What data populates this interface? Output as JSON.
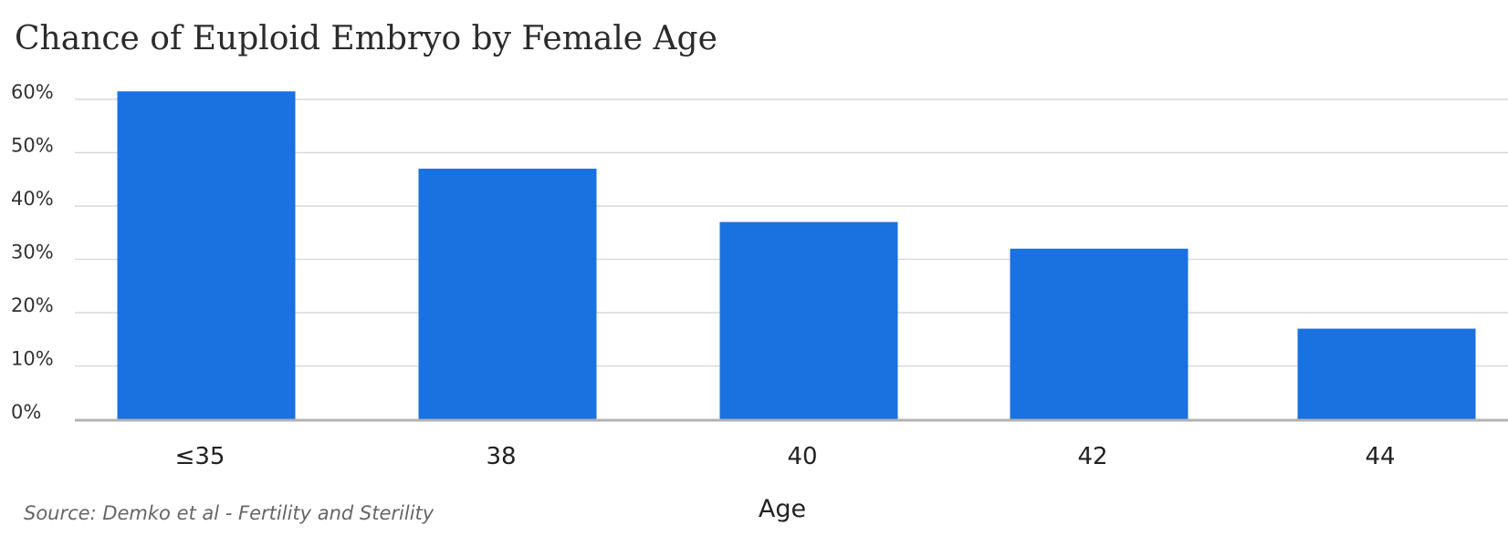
{
  "chart_data": {
    "type": "bar",
    "title": "Chance of Euploid Embryo by Female Age",
    "xlabel": "Age",
    "ylabel": "",
    "categories": [
      "≤35",
      "38",
      "40",
      "42",
      "44"
    ],
    "values": [
      61.5,
      47,
      37,
      32,
      17
    ],
    "ylim": [
      0,
      60
    ],
    "yticks": [
      0,
      10,
      20,
      30,
      40,
      50,
      60
    ],
    "ytick_labels": [
      "0%",
      "10%",
      "20%",
      "30%",
      "40%",
      "50%",
      "60%"
    ],
    "grid": true,
    "legend": "none",
    "bar_color": "#1a71e0",
    "grid_color": "#d9d9d9",
    "axis_color": "#b3b3b3",
    "source": "Source: Demko et al - Fertility and Sterility"
  }
}
